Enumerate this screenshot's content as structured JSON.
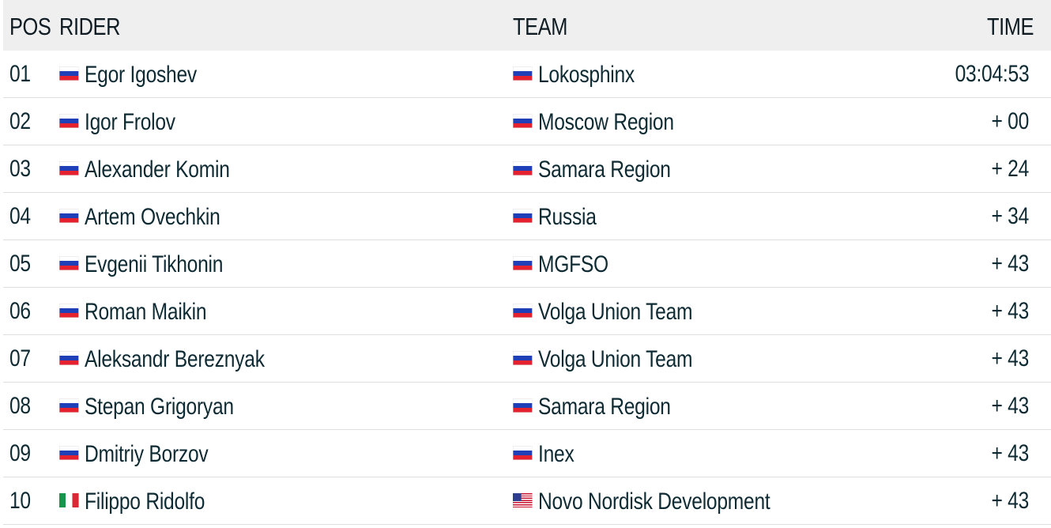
{
  "header": {
    "pos": "POS",
    "rider": "RIDER",
    "team": "TEAM",
    "time": "TIME"
  },
  "rows": [
    {
      "pos": "01",
      "rider": "Egor Igoshev",
      "rider_flag": "flag-ru",
      "team": "Lokosphinx",
      "team_flag": "flag-ru",
      "time": "03:04:53"
    },
    {
      "pos": "02",
      "rider": "Igor Frolov",
      "rider_flag": "flag-ru",
      "team": "Moscow Region",
      "team_flag": "flag-ru",
      "time": "+ 00"
    },
    {
      "pos": "03",
      "rider": "Alexander Komin",
      "rider_flag": "flag-ru",
      "team": "Samara Region",
      "team_flag": "flag-ru",
      "time": "+ 24"
    },
    {
      "pos": "04",
      "rider": "Artem Ovechkin",
      "rider_flag": "flag-ru",
      "team": "Russia",
      "team_flag": "flag-ru",
      "time": "+ 34"
    },
    {
      "pos": "05",
      "rider": "Evgenii Tikhonin",
      "rider_flag": "flag-ru",
      "team": "MGFSO",
      "team_flag": "flag-ru",
      "time": "+ 43"
    },
    {
      "pos": "06",
      "rider": "Roman Maikin",
      "rider_flag": "flag-ru",
      "team": "Volga Union Team",
      "team_flag": "flag-ru",
      "time": "+ 43"
    },
    {
      "pos": "07",
      "rider": "Aleksandr Bereznyak",
      "rider_flag": "flag-ru",
      "team": "Volga Union Team",
      "team_flag": "flag-ru",
      "time": "+ 43"
    },
    {
      "pos": "08",
      "rider": "Stepan Grigoryan",
      "rider_flag": "flag-ru",
      "team": "Samara Region",
      "team_flag": "flag-ru",
      "time": "+ 43"
    },
    {
      "pos": "09",
      "rider": "Dmitriy Borzov",
      "rider_flag": "flag-ru",
      "team": "Inex",
      "team_flag": "flag-ru",
      "time": "+ 43"
    },
    {
      "pos": "10",
      "rider": "Filippo Ridolfo",
      "rider_flag": "flag-it",
      "team": "Novo Nordisk Development",
      "team_flag": "flag-us",
      "time": "+ 43"
    }
  ]
}
